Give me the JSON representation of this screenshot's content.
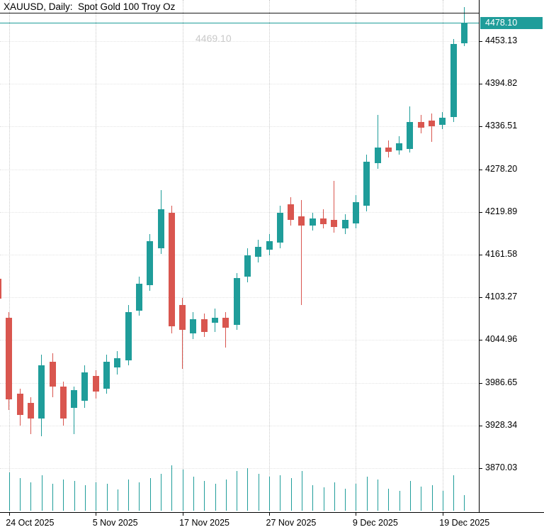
{
  "header": {
    "title": "XAUUSD, Daily:  Spot Gold 100 Troy Oz"
  },
  "watermark": {
    "text": "4469.10"
  },
  "price_axis": {
    "current_price": "4478.10",
    "labels": [
      4453.13,
      4394.82,
      4336.51,
      4278.2,
      4219.89,
      4161.58,
      4103.27,
      4044.96,
      3986.65,
      3928.34,
      3870.03
    ]
  },
  "time_axis": {
    "labels": [
      {
        "text": "24 Oct 2025",
        "index": 1
      },
      {
        "text": "5 Nov 2025",
        "index": 9
      },
      {
        "text": "17 Nov 2025",
        "index": 17
      },
      {
        "text": "27 Nov 2025",
        "index": 25
      },
      {
        "text": "9 Dec 2025",
        "index": 33
      },
      {
        "text": "19 Dec 2025",
        "index": 41
      }
    ]
  },
  "colors": {
    "bull": "#1F9D9A",
    "bear": "#D9564F",
    "volume": "#1F9D9A",
    "badge_bg": "#1F9D9A",
    "badge_text": "#FFFFFF",
    "price_line": "#1F9D9A",
    "object_line": "#1A1A1A",
    "axis_line": "#000000",
    "grid": "#C9C9C9",
    "watermark_text": "#C9C9C9"
  },
  "chart_data": {
    "type": "candlestick",
    "symbol": "XAUUSD",
    "period": "Daily",
    "description": "Spot Gold 100 Troy Oz",
    "title": "XAUUSD, Daily: Spot Gold 100 Troy Oz",
    "current_price": 4478.1,
    "y_ticks": [
      4453.13,
      4394.82,
      4336.51,
      4278.2,
      4219.89,
      4161.58,
      4103.27,
      4044.96,
      3986.65,
      3928.34,
      3870.03
    ],
    "x_tick_labels": [
      "24 Oct 2025",
      "5 Nov 2025",
      "17 Nov 2025",
      "27 Nov 2025",
      "9 Dec 2025",
      "19 Dec 2025"
    ],
    "grid": true,
    "ohlc_order": [
      "open",
      "high",
      "low",
      "close"
    ],
    "dates": [
      "23 Oct 2025",
      "24 Oct 2025",
      "27 Oct 2025",
      "28 Oct 2025",
      "29 Oct 2025",
      "30 Oct 2025",
      "31 Oct 2025",
      "3 Nov 2025",
      "4 Nov 2025",
      "5 Nov 2025",
      "6 Nov 2025",
      "7 Nov 2025",
      "10 Nov 2025",
      "11 Nov 2025",
      "12 Nov 2025",
      "13 Nov 2025",
      "14 Nov 2025",
      "17 Nov 2025",
      "18 Nov 2025",
      "19 Nov 2025",
      "20 Nov 2025",
      "21 Nov 2025",
      "24 Nov 2025",
      "25 Nov 2025",
      "26 Nov 2025",
      "27 Nov 2025",
      "28 Nov 2025",
      "1 Dec 2025",
      "2 Dec 2025",
      "3 Dec 2025",
      "4 Dec 2025",
      "5 Dec 2025",
      "8 Dec 2025",
      "9 Dec 2025",
      "10 Dec 2025",
      "11 Dec 2025",
      "12 Dec 2025",
      "15 Dec 2025",
      "16 Dec 2025",
      "17 Dec 2025",
      "18 Dec 2025",
      "19 Dec 2025",
      "22 Dec 2025",
      "23 Dec 2025"
    ],
    "ohlc": [
      [
        4128.6,
        4133.5,
        4054.1,
        4101.5
      ],
      [
        4075.4,
        4083.1,
        3949.4,
        3963.9
      ],
      [
        3971.7,
        3978.5,
        3928.1,
        3942.6
      ],
      [
        3959.1,
        3966.8,
        3916.5,
        3937.8
      ],
      [
        3937.8,
        4025.0,
        3913.6,
        4010.4
      ],
      [
        4015.3,
        4027.0,
        3966.8,
        3981.4
      ],
      [
        3981.4,
        3988.2,
        3928.1,
        3937.8
      ],
      [
        3952.4,
        3981.4,
        3916.5,
        3976.6
      ],
      [
        3962.0,
        4010.4,
        3952.4,
        4000.8
      ],
      [
        3995.9,
        4003.7,
        3964.9,
        3974.6
      ],
      [
        3978.5,
        4025.0,
        3971.7,
        4015.3
      ],
      [
        4007.6,
        4029.8,
        3997.9,
        4020.2
      ],
      [
        4017.3,
        4092.8,
        4010.4,
        4083.1
      ],
      [
        4085.1,
        4131.5,
        4078.3,
        4121.9
      ],
      [
        4119.9,
        4189.7,
        4112.2,
        4180.0
      ],
      [
        4170.3,
        4249.7,
        4162.5,
        4223.6
      ],
      [
        4218.7,
        4228.4,
        4054.1,
        4063.8
      ],
      [
        4092.8,
        4102.5,
        4005.6,
        4058.9
      ],
      [
        4054.1,
        4083.1,
        4046.3,
        4073.4
      ],
      [
        4073.4,
        4081.2,
        4049.2,
        4056.0
      ],
      [
        4068.6,
        4088.0,
        4056.0,
        4075.4
      ],
      [
        4075.4,
        4083.1,
        4034.7,
        4061.8
      ],
      [
        4065.7,
        4136.4,
        4058.9,
        4129.6
      ],
      [
        4131.5,
        4170.3,
        4123.8,
        4160.6
      ],
      [
        4158.7,
        4181.9,
        4150.9,
        4172.2
      ],
      [
        4168.4,
        4189.7,
        4160.6,
        4180.0
      ],
      [
        4178.1,
        4228.4,
        4170.3,
        4218.7
      ],
      [
        4230.3,
        4240.0,
        4201.3,
        4209.0
      ],
      [
        4213.8,
        4236.2,
        4092.8,
        4201.3
      ],
      [
        4201.3,
        4218.7,
        4194.5,
        4211.0
      ],
      [
        4211.0,
        4223.6,
        4197.4,
        4203.2
      ],
      [
        4209.0,
        4262.3,
        4191.6,
        4199.4
      ],
      [
        4197.4,
        4216.8,
        4189.7,
        4209.0
      ],
      [
        4204.2,
        4242.9,
        4197.4,
        4233.3
      ],
      [
        4228.4,
        4298.2,
        4220.7,
        4288.5
      ],
      [
        4286.5,
        4352.4,
        4278.8,
        4307.8
      ],
      [
        4307.8,
        4317.5,
        4294.3,
        4302.0
      ],
      [
        4303.9,
        4323.3,
        4298.2,
        4313.6
      ],
      [
        4305.9,
        4364.0,
        4301.1,
        4342.7
      ],
      [
        4342.7,
        4352.4,
        4327.2,
        4334.9
      ],
      [
        4344.6,
        4354.3,
        4315.6,
        4336.9
      ],
      [
        4338.8,
        4356.2,
        4333.0,
        4348.5
      ],
      [
        4349.5,
        4456.0,
        4342.7,
        4449.3
      ],
      [
        4450.0,
        4500.0,
        4446.0,
        4478.1
      ]
    ],
    "volume": [
      36,
      54,
      46,
      40,
      50,
      38,
      44,
      42,
      36,
      40,
      38,
      30,
      44,
      40,
      46,
      52,
      64,
      58,
      48,
      42,
      38,
      44,
      56,
      60,
      52,
      48,
      50,
      46,
      56,
      36,
      33,
      40,
      31,
      38,
      48,
      44,
      31,
      28,
      42,
      34,
      36,
      28,
      50,
      22
    ]
  }
}
